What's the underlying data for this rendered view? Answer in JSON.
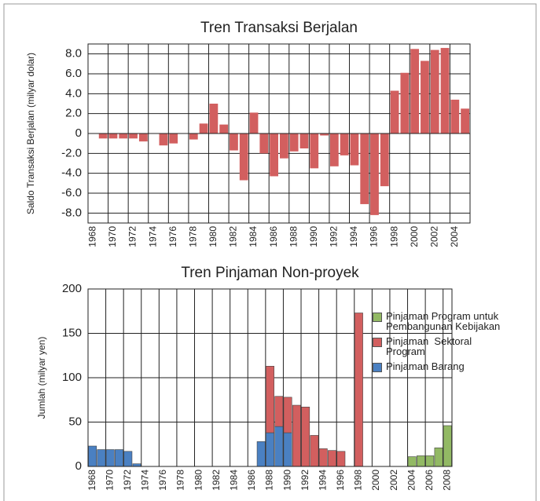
{
  "chart_data": [
    {
      "type": "bar",
      "title": "Tren Transaksi Berjalan",
      "y_label": "Saldo Transaksi Berjalan (milyar dolar)",
      "categories": [
        "1968",
        null,
        "1970",
        null,
        "1972",
        null,
        "1974",
        null,
        "1976",
        null,
        "1978",
        null,
        "1980",
        null,
        "1982",
        null,
        "1984",
        null,
        "1986",
        null,
        "1988",
        null,
        "1990",
        null,
        "1992",
        null,
        "1994",
        null,
        "1996",
        null,
        "1998",
        null,
        "2000",
        null,
        "2002",
        null,
        "2004",
        null
      ],
      "values": [
        0,
        -0.5,
        -0.5,
        -0.5,
        -0.5,
        -0.8,
        0,
        -1.2,
        -1.0,
        0,
        -0.6,
        1.0,
        3.0,
        0.9,
        -1.7,
        -4.7,
        2.1,
        -2.0,
        -4.3,
        -2.5,
        -1.8,
        -1.5,
        -3.5,
        -0.2,
        -3.3,
        -2.2,
        -3.2,
        -7.1,
        -8.2,
        -5.3,
        4.3,
        6.1,
        8.5,
        7.3,
        8.4,
        8.6,
        3.4,
        2.5
      ],
      "color": "#d25f5f",
      "ylim": [
        -9,
        9
      ],
      "yticks": [
        {
          "value": -8,
          "label": "-8.0"
        },
        {
          "value": -6,
          "label": "-6.0"
        },
        {
          "value": -4,
          "label": "-4.0"
        },
        {
          "value": -2,
          "label": "-2.0"
        },
        0,
        {
          "value": 2,
          "label": "2.0"
        },
        {
          "value": 4,
          "label": "4.0"
        },
        {
          "value": 6,
          "label": "6.0"
        },
        {
          "value": 8,
          "label": "8.0"
        }
      ],
      "grid": true
    },
    {
      "type": "stacked_bar",
      "title": "Tren Pinjaman Non-proyek",
      "y_label": "Jumlah (milyar yen)",
      "categories": [
        "1968",
        null,
        "1970",
        null,
        "1972",
        null,
        "1974",
        null,
        "1976",
        null,
        "1978",
        null,
        "1980",
        null,
        "1982",
        null,
        "1984",
        null,
        "1986",
        null,
        "1988",
        null,
        "1990",
        null,
        "1992",
        null,
        "1994",
        null,
        "1996",
        null,
        "1998",
        null,
        "2000",
        null,
        "2002",
        null,
        "2004",
        null,
        "2006",
        null,
        "2008"
      ],
      "series": [
        {
          "name": "Pinjaman Barang",
          "color": "#4a80c2",
          "values": [
            23,
            19,
            19,
            19,
            17,
            3,
            0,
            0,
            0,
            0,
            0,
            0,
            0,
            0,
            0,
            0,
            0,
            0,
            0,
            28,
            38,
            45,
            38,
            0,
            0,
            0,
            0,
            0,
            0,
            0,
            0,
            0,
            0,
            0,
            0,
            0,
            0,
            0,
            0,
            0,
            0
          ]
        },
        {
          "name": "Pinjaman  Sektoral Program",
          "color": "#d25f5f",
          "values": [
            0,
            0,
            0,
            0,
            0,
            0,
            0,
            0,
            0,
            0,
            0,
            0,
            0,
            0,
            0,
            0,
            0,
            0,
            0,
            0,
            75,
            34,
            40,
            69,
            67,
            35,
            20,
            18,
            17,
            0,
            173,
            0,
            0,
            0,
            0,
            0,
            0,
            0,
            0,
            0,
            0
          ]
        },
        {
          "name": "Pinjaman Program untuk Pembangunan Kebijakan",
          "color": "#92b964",
          "values": [
            0,
            0,
            0,
            0,
            0,
            0,
            0,
            0,
            0,
            0,
            0,
            0,
            0,
            0,
            0,
            0,
            0,
            0,
            0,
            0,
            0,
            0,
            0,
            0,
            0,
            0,
            0,
            0,
            0,
            0,
            0,
            0,
            0,
            0,
            0,
            0,
            11,
            12,
            12,
            21,
            46
          ]
        }
      ],
      "ylim": [
        0,
        200
      ],
      "yticks": [
        0,
        50,
        100,
        150,
        200
      ],
      "grid": true,
      "legend": "upper right"
    }
  ]
}
